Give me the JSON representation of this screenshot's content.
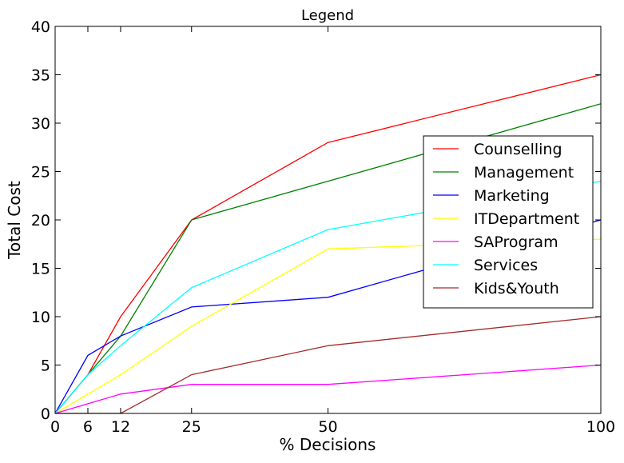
{
  "chart_data": {
    "type": "line",
    "title": "Legend",
    "xlabel": "% Decisions",
    "ylabel": "Total Cost",
    "xlim": [
      0,
      100
    ],
    "ylim": [
      0,
      40
    ],
    "xticks": [
      0,
      6,
      12,
      25,
      50,
      100
    ],
    "yticks": [
      0,
      5,
      10,
      15,
      20,
      25,
      30,
      35,
      40
    ],
    "grid": false,
    "legend_position": "center-right",
    "series": [
      {
        "name": "Counselling",
        "color": "#ff0000",
        "points": [
          [
            0,
            0
          ],
          [
            6,
            4
          ],
          [
            12,
            10
          ],
          [
            25,
            20
          ],
          [
            50,
            28
          ],
          [
            100,
            35
          ]
        ]
      },
      {
        "name": "Management",
        "color": "#008000",
        "points": [
          [
            0,
            0
          ],
          [
            6,
            4
          ],
          [
            12,
            8
          ],
          [
            25,
            20
          ],
          [
            50,
            24
          ],
          [
            100,
            32
          ]
        ]
      },
      {
        "name": "Marketing",
        "color": "#0000ff",
        "points": [
          [
            0,
            0
          ],
          [
            6,
            6
          ],
          [
            12,
            8
          ],
          [
            25,
            11
          ],
          [
            50,
            12
          ],
          [
            100,
            20
          ]
        ]
      },
      {
        "name": "ITDepartment",
        "color": "#ffff00",
        "points": [
          [
            0,
            0
          ],
          [
            6,
            2
          ],
          [
            12,
            4
          ],
          [
            25,
            9
          ],
          [
            50,
            17
          ],
          [
            100,
            18
          ]
        ]
      },
      {
        "name": "SAProgram",
        "color": "#ff00ff",
        "points": [
          [
            0,
            0
          ],
          [
            6,
            1
          ],
          [
            12,
            2
          ],
          [
            25,
            3
          ],
          [
            50,
            3
          ],
          [
            100,
            5
          ]
        ]
      },
      {
        "name": "Services",
        "color": "#00ffff",
        "points": [
          [
            0,
            0
          ],
          [
            6,
            4
          ],
          [
            12,
            7
          ],
          [
            25,
            13
          ],
          [
            50,
            19
          ],
          [
            100,
            24
          ]
        ]
      },
      {
        "name": "Kids&Youth",
        "color": "#a52a2a",
        "points": [
          [
            0,
            0
          ],
          [
            6,
            0
          ],
          [
            12,
            0
          ],
          [
            25,
            4
          ],
          [
            50,
            7
          ],
          [
            100,
            10
          ]
        ]
      }
    ]
  }
}
